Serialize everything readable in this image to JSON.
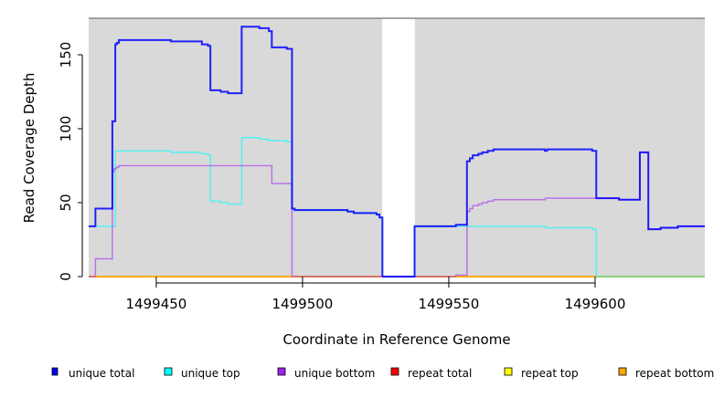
{
  "chart_data": {
    "type": "line",
    "step": "post",
    "title": "",
    "xlabel": "Coordinate in Reference Genome",
    "ylabel": "Read Coverage Depth",
    "xlim": [
      1499426.9,
      1499637.5
    ],
    "ylim": [
      0,
      174.7
    ],
    "xticks": [
      1499450,
      1499500,
      1499550,
      1499600
    ],
    "xtick_labels": [
      "1499450",
      "1499500",
      "1499550",
      "1499600"
    ],
    "yticks": [
      0,
      50,
      100,
      150
    ],
    "ytick_labels": [
      "0",
      "50",
      "100",
      "150"
    ],
    "background": "#d9d9d9",
    "gap_region": [
      1499527.2,
      1499538.4
    ],
    "legend_position": "bottom",
    "series": [
      {
        "name": "unique total",
        "color": "#0000ff",
        "segments": [
          [
            [
              1499426.9,
              34
            ],
            [
              1499429.2,
              46
            ],
            [
              1499435,
              105
            ],
            [
              1499436,
              157
            ],
            [
              1499436.5,
              158
            ],
            [
              1499437.2,
              160
            ],
            [
              1499455,
              159
            ],
            [
              1499465.6,
              157
            ],
            [
              1499467.7,
              156
            ],
            [
              1499468.5,
              126
            ],
            [
              1499472,
              125
            ],
            [
              1499474.5,
              124
            ],
            [
              1499479.2,
              169
            ],
            [
              1499485.2,
              168
            ],
            [
              1499488.5,
              166
            ],
            [
              1499489.5,
              155
            ],
            [
              1499494.6,
              154
            ],
            [
              1499496.4,
              46
            ],
            [
              1499497.3,
              45
            ],
            [
              1499515.4,
              44
            ],
            [
              1499517.5,
              43
            ],
            [
              1499525.3,
              42
            ],
            [
              1499526.3,
              40
            ],
            [
              1499527.3,
              0
            ]
          ],
          [
            [
              1499527.3,
              0
            ],
            [
              1499538.3,
              34
            ],
            [
              1499552.4,
              35
            ],
            [
              1499556.2,
              78
            ],
            [
              1499557.2,
              80
            ],
            [
              1499558.2,
              82
            ],
            [
              1499560.1,
              83
            ],
            [
              1499561.4,
              84
            ],
            [
              1499563.3,
              85
            ],
            [
              1499565.3,
              86
            ],
            [
              1499582.8,
              85
            ],
            [
              1499583.6,
              86
            ],
            [
              1499599,
              85
            ],
            [
              1499600.4,
              53
            ],
            [
              1499608.2,
              52
            ],
            [
              1499615.3,
              84
            ],
            [
              1499618.2,
              32
            ],
            [
              1499622.4,
              33
            ],
            [
              1499628.3,
              34
            ],
            [
              1499637.5,
              34
            ]
          ]
        ]
      },
      {
        "name": "unique top",
        "color": "#00ffff",
        "segments": [
          [
            [
              1499426.9,
              34
            ],
            [
              1499436,
              85
            ],
            [
              1499455,
              84
            ],
            [
              1499465.6,
              83
            ],
            [
              1499467.7,
              82
            ],
            [
              1499468.5,
              51
            ],
            [
              1499472,
              50
            ],
            [
              1499474.5,
              49
            ],
            [
              1499479.2,
              94
            ],
            [
              1499485.2,
              93
            ],
            [
              1499488.5,
              92
            ],
            [
              1499494.6,
              91
            ],
            [
              1499496.4,
              46
            ],
            [
              1499497.3,
              45
            ],
            [
              1499515.4,
              44
            ],
            [
              1499517.5,
              43
            ],
            [
              1499525.3,
              42
            ],
            [
              1499526.3,
              40
            ],
            [
              1499527.3,
              0
            ]
          ],
          [
            [
              1499527.3,
              0
            ],
            [
              1499538.3,
              34
            ],
            [
              1499583,
              33
            ],
            [
              1499599,
              32
            ],
            [
              1499600.4,
              0
            ],
            [
              1499637.5,
              0
            ]
          ]
        ]
      },
      {
        "name": "unique bottom",
        "color": "#a020f0",
        "segments": [
          [
            [
              1499426.9,
              0
            ],
            [
              1499429.2,
              12
            ],
            [
              1499435,
              71
            ],
            [
              1499435.6,
              73
            ],
            [
              1499436.4,
              74
            ],
            [
              1499437.2,
              75
            ],
            [
              1499489.5,
              63
            ],
            [
              1499496.4,
              0
            ],
            [
              1499527.3,
              0
            ]
          ],
          [
            [
              1499527.3,
              0
            ],
            [
              1499552.4,
              1
            ],
            [
              1499556.2,
              44
            ],
            [
              1499557.2,
              46
            ],
            [
              1499558.2,
              48
            ],
            [
              1499560.1,
              49
            ],
            [
              1499561.4,
              50
            ],
            [
              1499563.3,
              51
            ],
            [
              1499565.3,
              52
            ],
            [
              1499583,
              53
            ],
            [
              1499600.4,
              53
            ],
            [
              1499608.2,
              52
            ],
            [
              1499615.3,
              84
            ],
            [
              1499618.2,
              32
            ],
            [
              1499622.4,
              33
            ],
            [
              1499628.3,
              34
            ],
            [
              1499637.5,
              34
            ]
          ]
        ]
      },
      {
        "name": "repeat total",
        "color": "#ff0000",
        "segments": [
          [
            [
              1499426.9,
              0
            ],
            [
              1499637.5,
              0
            ]
          ]
        ]
      },
      {
        "name": "repeat top",
        "color": "#ffff00",
        "segments": [
          [
            [
              1499426.9,
              0
            ],
            [
              1499637.5,
              0
            ]
          ]
        ]
      },
      {
        "name": "repeat bottom",
        "color": "#ffa500",
        "segments": [
          [
            [
              1499426.9,
              0
            ],
            [
              1499637.5,
              0
            ]
          ]
        ]
      }
    ]
  }
}
